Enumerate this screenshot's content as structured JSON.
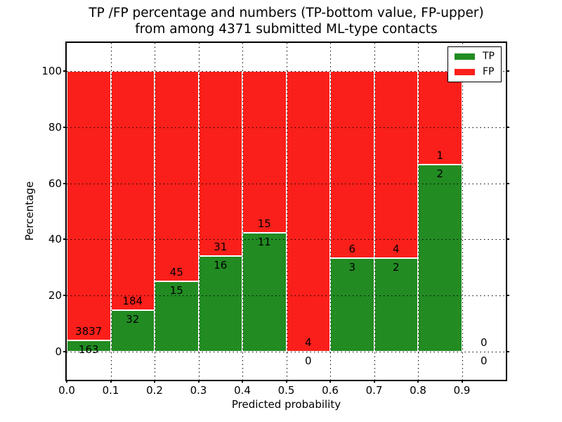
{
  "chart_data": {
    "type": "bar",
    "stacked": true,
    "title_line1": "TP /FP percentage and numbers (TP-bottom value, FP-upper)",
    "title_line2": "from among 4371 submitted ML-type contacts",
    "xlabel": "Predicted probability",
    "ylabel": "Percentage",
    "xlim": [
      0.0,
      1.0
    ],
    "ylim": [
      -10,
      110
    ],
    "grid": true,
    "gridstyle": "dotted",
    "legend_position": "upper right",
    "legend": [
      {
        "label": "TP",
        "color": "#228b22"
      },
      {
        "label": "FP",
        "color": "#fa1f1a"
      }
    ],
    "xticks": [
      "0.0",
      "0.1",
      "0.2",
      "0.3",
      "0.4",
      "0.5",
      "0.6",
      "0.7",
      "0.8",
      "0.9"
    ],
    "yticks": [
      0,
      20,
      40,
      60,
      80,
      100
    ],
    "bins": [
      {
        "x0": 0.0,
        "x1": 0.1,
        "tp": 163,
        "fp": 3837,
        "tp_pct": 4.08,
        "total_pct": 100
      },
      {
        "x0": 0.1,
        "x1": 0.2,
        "tp": 32,
        "fp": 184,
        "tp_pct": 14.81,
        "total_pct": 100
      },
      {
        "x0": 0.2,
        "x1": 0.3,
        "tp": 15,
        "fp": 45,
        "tp_pct": 25.0,
        "total_pct": 100
      },
      {
        "x0": 0.3,
        "x1": 0.4,
        "tp": 16,
        "fp": 31,
        "tp_pct": 34.04,
        "total_pct": 100
      },
      {
        "x0": 0.4,
        "x1": 0.5,
        "tp": 11,
        "fp": 15,
        "tp_pct": 42.31,
        "total_pct": 100
      },
      {
        "x0": 0.5,
        "x1": 0.6,
        "tp": 0,
        "fp": 4,
        "tp_pct": 0,
        "total_pct": 100
      },
      {
        "x0": 0.6,
        "x1": 0.7,
        "tp": 3,
        "fp": 6,
        "tp_pct": 33.33,
        "total_pct": 100
      },
      {
        "x0": 0.7,
        "x1": 0.8,
        "tp": 2,
        "fp": 4,
        "tp_pct": 33.33,
        "total_pct": 100
      },
      {
        "x0": 0.8,
        "x1": 0.9,
        "tp": 2,
        "fp": 1,
        "tp_pct": 66.67,
        "total_pct": 100
      },
      {
        "x0": 0.9,
        "x1": 1.0,
        "tp": 0,
        "fp": 0,
        "tp_pct": 0,
        "total_pct": 0
      }
    ]
  }
}
